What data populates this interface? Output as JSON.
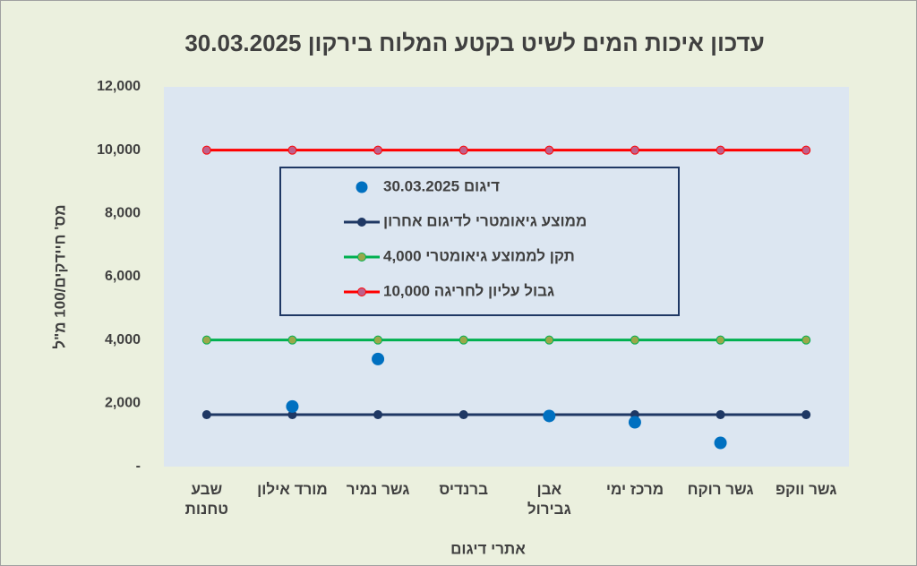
{
  "chart_data": {
    "type": "line",
    "title": "עדכון איכות המים לשיט בקטע המלוח בירקון 30.03.2025",
    "x_label": "אתרי דיגום",
    "y_label": "מס' חיידקים/100 מ\"ל",
    "categories": [
      "שבע טחנות",
      "מורד אילון",
      "גשר נמיר",
      "ברנדיס",
      "אבן גבירול",
      "מרכז ימי",
      "גשר רוקח",
      "גשר ווקפ"
    ],
    "series": [
      {
        "name": "דיגום 30.03.2025",
        "color": "#0070c0",
        "style": "markers",
        "values": [
          null,
          1900,
          3400,
          null,
          1600,
          1400,
          750,
          null
        ]
      },
      {
        "name": "ממוצע  גיאומטרי לדיגום אחרון",
        "color": "#1f3864",
        "marker_color": "#1f3864",
        "style": "line",
        "values": [
          1640,
          1640,
          1640,
          1640,
          1640,
          1640,
          1640,
          1640
        ]
      },
      {
        "name": "תקן לממוצע גיאומטרי 4,000",
        "color": "#00b050",
        "marker_color": "#9aa84a",
        "style": "line",
        "values": [
          4000,
          4000,
          4000,
          4000,
          4000,
          4000,
          4000,
          4000
        ]
      },
      {
        "name": "גבול עליון לחריגה 10,000",
        "color": "#ff0000",
        "marker_color": "#c0608a",
        "style": "line",
        "values": [
          10000,
          10000,
          10000,
          10000,
          10000,
          10000,
          10000,
          10000
        ]
      }
    ],
    "ylim": [
      0,
      12000
    ],
    "yticks": [
      {
        "value": 0,
        "label": "-"
      },
      {
        "value": 2000,
        "label": "2,000"
      },
      {
        "value": 4000,
        "label": "4,000"
      },
      {
        "value": 6000,
        "label": "6,000"
      },
      {
        "value": 8000,
        "label": "8,000"
      },
      {
        "value": 10000,
        "label": "10,000"
      },
      {
        "value": 12000,
        "label": "12,000"
      }
    ]
  }
}
